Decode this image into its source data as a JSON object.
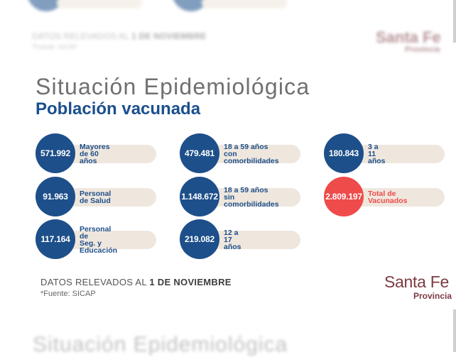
{
  "header": {
    "title": "Situación Epidemiológica",
    "subtitle": "Población vacunada"
  },
  "stats": [
    {
      "value": "571.992",
      "label": "Mayores de 60 años",
      "highlight": false
    },
    {
      "value": "479.481",
      "label": "18 a 59 años con\ncomorbilidades",
      "highlight": false
    },
    {
      "value": "180.843",
      "label": "3 a 11 años",
      "highlight": false
    },
    {
      "value": "91.963",
      "label": "Personal de Salud",
      "highlight": false
    },
    {
      "value": "1.148.672",
      "label": "18 a 59 años sin\ncomorbilidades",
      "highlight": false
    },
    {
      "value": "2.809.197",
      "label": "Total de Vacunados",
      "highlight": true
    },
    {
      "value": "117.164",
      "label": "Personal de\nSeg. y Educación",
      "highlight": false
    },
    {
      "value": "219.082",
      "label": "12 a 17 años",
      "highlight": false
    }
  ],
  "footer": {
    "relevado_prefix": "DATOS RELEVADOS AL ",
    "relevado_date": "1 DE NOVIEMBRE",
    "fuente": "*Fuente: SICAP"
  },
  "brand": {
    "name": "Santa Fe",
    "sub": "Provincia"
  },
  "colors": {
    "primary_blue": "#1d4f8a",
    "total_red": "#ef4b4a",
    "pill_beige": "#efe7de",
    "brand_maroon": "#7d3b42"
  }
}
